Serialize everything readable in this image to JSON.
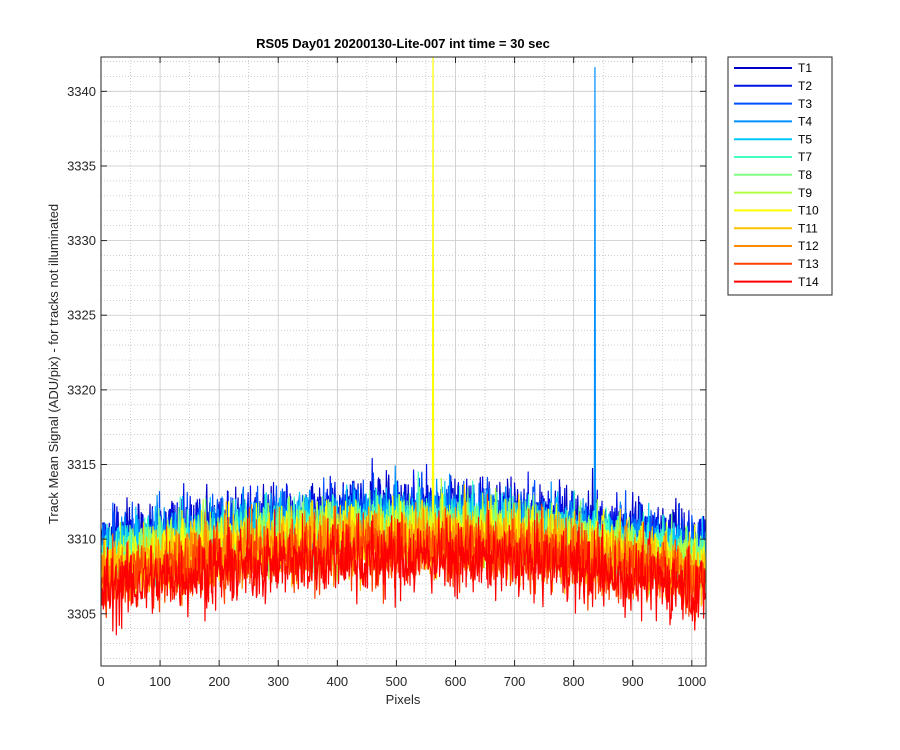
{
  "chart_data": {
    "type": "line",
    "title": "RS05 Day01 20200130-Lite-007 int time = 30 sec",
    "xlabel": "Pixels",
    "ylabel": "Track Mean Signal (ADU/pix) - for tracks not illuminated",
    "xlim": [
      0,
      1024
    ],
    "ylim": [
      3301.5,
      3342.3
    ],
    "xticks": [
      0,
      100,
      200,
      300,
      400,
      500,
      600,
      700,
      800,
      900,
      1000
    ],
    "yticks": [
      3305,
      3310,
      3315,
      3320,
      3325,
      3330,
      3335,
      3340
    ],
    "grid": true,
    "minor_grid": true,
    "legend_location": "outside-top-right",
    "series": [
      {
        "name": "T1",
        "color": "#0000c8",
        "base": 3309.6,
        "noise": 1.6
      },
      {
        "name": "T2",
        "color": "#0010e6",
        "base": 3309.4,
        "noise": 1.6
      },
      {
        "name": "T3",
        "color": "#0050ff",
        "base": 3309.2,
        "noise": 1.6
      },
      {
        "name": "T4",
        "color": "#0090ff",
        "base": 3309.0,
        "noise": 1.5,
        "spike": {
          "x": 836,
          "y": 3341.6
        }
      },
      {
        "name": "T5",
        "color": "#00c8ff",
        "base": 3308.8,
        "noise": 1.5
      },
      {
        "name": "T7",
        "color": "#40ffc0",
        "base": 3308.6,
        "noise": 1.5
      },
      {
        "name": "T8",
        "color": "#80ff80",
        "base": 3308.4,
        "noise": 1.5
      },
      {
        "name": "T9",
        "color": "#b0ff40",
        "base": 3308.2,
        "noise": 1.5
      },
      {
        "name": "T10",
        "color": "#ffff00",
        "base": 3308.0,
        "noise": 1.5,
        "spike": {
          "x": 562,
          "y": 3342.3
        }
      },
      {
        "name": "T11",
        "color": "#ffc000",
        "base": 3307.7,
        "noise": 1.6
      },
      {
        "name": "T12",
        "color": "#ff8c00",
        "base": 3307.4,
        "noise": 1.6
      },
      {
        "name": "T13",
        "color": "#ff4000",
        "base": 3307.0,
        "noise": 1.7
      },
      {
        "name": "T14",
        "color": "#ff0000",
        "base": 3306.5,
        "noise": 1.8
      }
    ]
  }
}
